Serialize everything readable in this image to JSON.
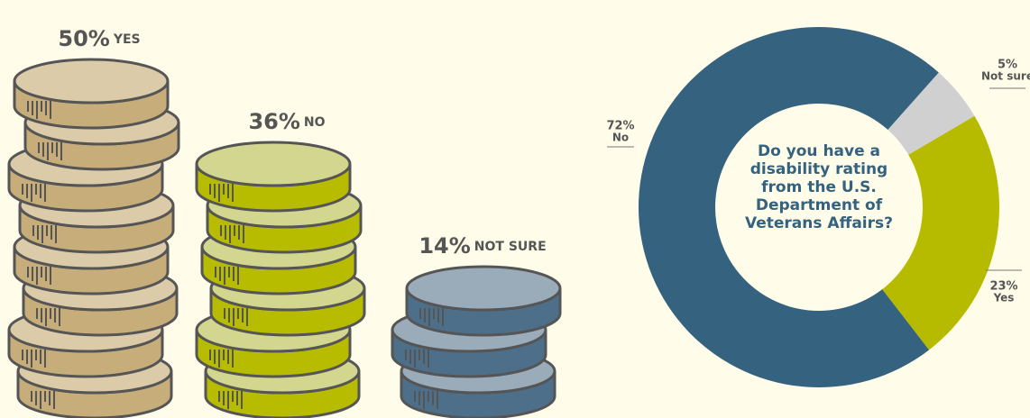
{
  "chart_data": [
    {
      "type": "coin-stack",
      "categories": [
        "YES",
        "NO",
        "NOT SURE"
      ],
      "values": [
        50,
        36,
        14
      ],
      "value_labels": [
        "50%",
        "36%",
        "14%"
      ],
      "colors": [
        "#c6ad7a",
        "#b8bc00",
        "#4d6f8a"
      ],
      "top_colors": [
        "#dbcba9",
        "#d3d68f",
        "#9aabb9"
      ]
    },
    {
      "type": "donut",
      "title": "Do you have a disability rating from the U.S. Department of Veterans Affairs?",
      "categories": [
        "Not sure",
        "Yes",
        "No"
      ],
      "values": [
        5,
        23,
        72
      ],
      "value_labels": [
        "5%",
        "23%",
        "72%"
      ],
      "colors": [
        "#d0d0d0",
        "#b7bb00",
        "#34627f"
      ]
    }
  ]
}
